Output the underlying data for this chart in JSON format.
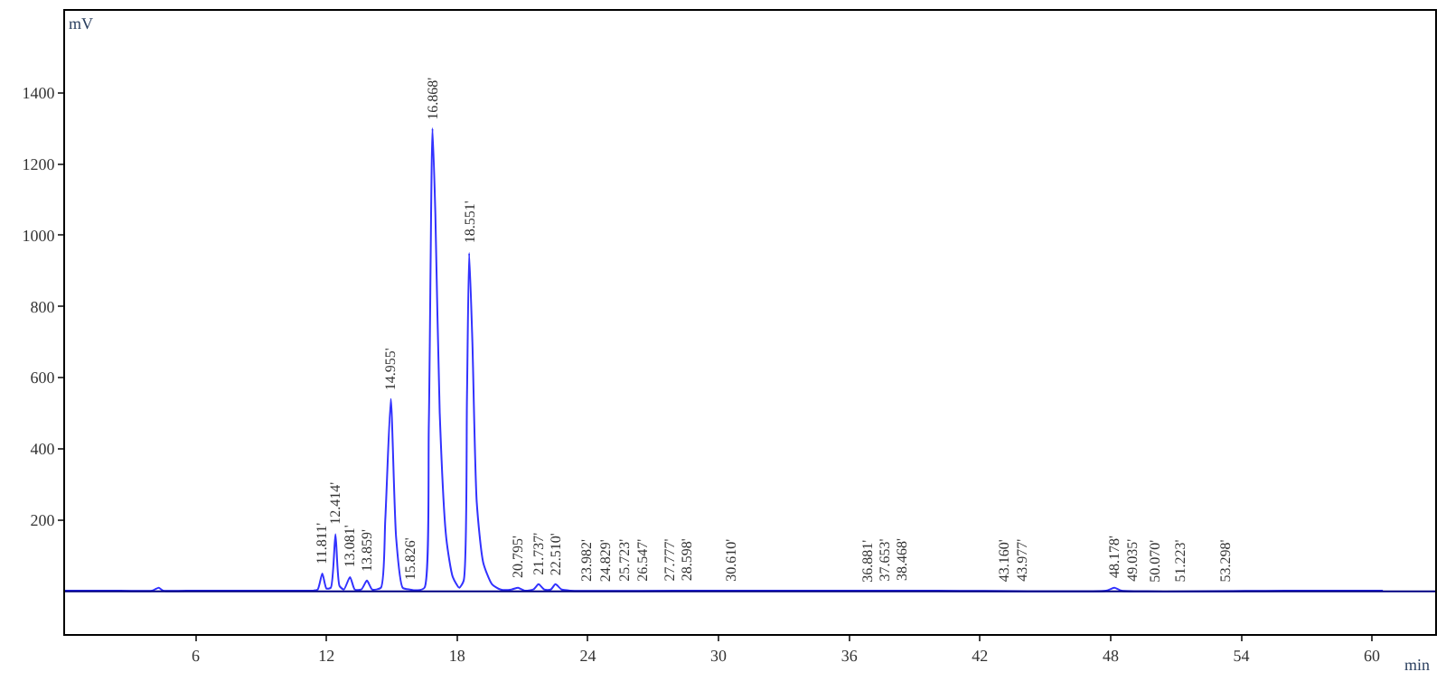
{
  "chart_data": {
    "type": "line",
    "xlabel": "min",
    "ylabel": "mV",
    "x": [
      0,
      2,
      4,
      4.3,
      4.5,
      6,
      8,
      10,
      11.4,
      11.6,
      11.811,
      12.0,
      12.2,
      12.414,
      12.6,
      12.8,
      13.081,
      13.3,
      13.6,
      13.859,
      14.1,
      14.5,
      14.7,
      14.955,
      15.2,
      15.5,
      15.826,
      16.2,
      16.5,
      16.7,
      16.868,
      17.0,
      17.2,
      17.5,
      17.8,
      18.1,
      18.3,
      18.45,
      18.551,
      18.7,
      18.9,
      19.2,
      19.6,
      20.0,
      20.5,
      20.795,
      21.1,
      21.5,
      21.737,
      22.0,
      22.3,
      22.51,
      22.8,
      23.2,
      30,
      40,
      47.8,
      48.178,
      48.5,
      56,
      60.5
    ],
    "series": [
      {
        "color": "#3232ff",
        "values": [
          2,
          2,
          2,
          10,
          2,
          2,
          2,
          2,
          2,
          5,
          50,
          8,
          10,
          160,
          15,
          5,
          40,
          5,
          5,
          30,
          5,
          10,
          200,
          540,
          150,
          10,
          5,
          3,
          10,
          470,
          1300,
          1060,
          500,
          150,
          40,
          10,
          30,
          540,
          950,
          700,
          250,
          80,
          20,
          5,
          5,
          10,
          2,
          5,
          20,
          5,
          5,
          20,
          5,
          2,
          2,
          2,
          2,
          10,
          2,
          2,
          2
        ]
      }
    ],
    "xlim": [
      0,
      62.9
    ],
    "ylim": [
      -120,
      1630
    ],
    "xticks": [
      6,
      12,
      18,
      24,
      30,
      36,
      42,
      48,
      54,
      60
    ],
    "yticks": [
      200,
      400,
      600,
      800,
      1000,
      1200,
      1400
    ],
    "marker": "none",
    "line_style": "solid",
    "ref_lines": [
      {
        "axis": "y",
        "value": 0,
        "color": "#000080",
        "line_style": "solid"
      }
    ],
    "annotations": [
      {
        "text": "11.811'",
        "x": 11.811,
        "y": 50
      },
      {
        "text": "12.414'",
        "x": 12.414,
        "y": 160
      },
      {
        "text": "13.081'",
        "x": 13.081,
        "y": 40
      },
      {
        "text": "13.859'",
        "x": 13.859,
        "y": 30
      },
      {
        "text": "14.955'",
        "x": 14.955,
        "y": 540
      },
      {
        "text": "15.826'",
        "x": 15.826,
        "y": 5
      },
      {
        "text": "16.868'",
        "x": 16.868,
        "y": 1300
      },
      {
        "text": "18.551'",
        "x": 18.551,
        "y": 950
      },
      {
        "text": "20.795'",
        "x": 20.795,
        "y": 10
      },
      {
        "text": "21.737'",
        "x": 21.737,
        "y": 20
      },
      {
        "text": "22.510'",
        "x": 22.51,
        "y": 20
      },
      {
        "text": "23.982'",
        "x": 23.982,
        "y": 2
      },
      {
        "text": "24.829'",
        "x": 24.829,
        "y": 2
      },
      {
        "text": "25.723'",
        "x": 25.723,
        "y": 2
      },
      {
        "text": "26.547'",
        "x": 26.547,
        "y": 2
      },
      {
        "text": "27.777'",
        "x": 27.777,
        "y": 2
      },
      {
        "text": "28.598'",
        "x": 28.598,
        "y": 2
      },
      {
        "text": "30.610'",
        "x": 30.61,
        "y": 2
      },
      {
        "text": "36.881'",
        "x": 36.881,
        "y": 2
      },
      {
        "text": "37.653'",
        "x": 37.653,
        "y": 2
      },
      {
        "text": "38.468'",
        "x": 38.468,
        "y": 2
      },
      {
        "text": "43.160'",
        "x": 43.16,
        "y": 2
      },
      {
        "text": "43.977'",
        "x": 43.977,
        "y": 2
      },
      {
        "text": "48.178'",
        "x": 48.178,
        "y": 10
      },
      {
        "text": "49.035'",
        "x": 49.035,
        "y": 2
      },
      {
        "text": "50.070'",
        "x": 50.07,
        "y": 2
      },
      {
        "text": "51.223'",
        "x": 51.223,
        "y": 2
      },
      {
        "text": "53.298'",
        "x": 53.298,
        "y": 2
      }
    ]
  }
}
